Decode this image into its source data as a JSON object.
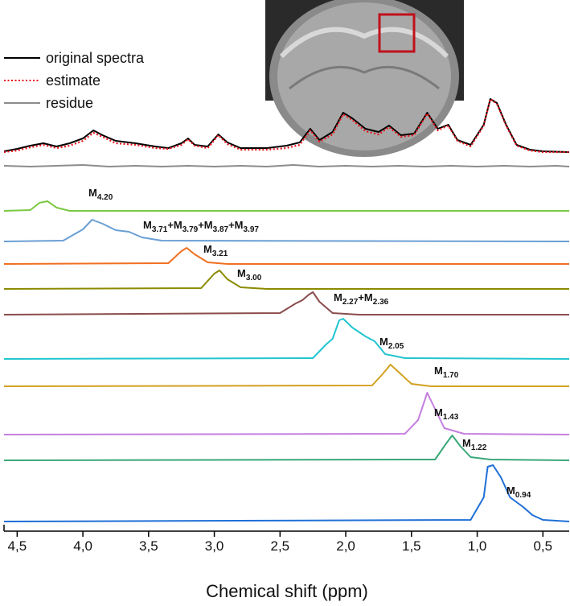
{
  "chart_data": {
    "type": "line",
    "xlabel": "Chemical shift (ppm)",
    "xlim": [
      4.6,
      0.3
    ],
    "xticks": [
      {
        "value": 4.5,
        "label": "4,5"
      },
      {
        "value": 4.0,
        "label": "4,0"
      },
      {
        "value": 3.5,
        "label": "3,5"
      },
      {
        "value": 3.0,
        "label": "3,0"
      },
      {
        "value": 2.5,
        "label": "2,5"
      },
      {
        "value": 2.0,
        "label": "2,0"
      },
      {
        "value": 1.5,
        "label": "1,5"
      },
      {
        "value": 1.0,
        "label": "1,0"
      },
      {
        "value": 0.5,
        "label": "0,5"
      }
    ],
    "series": [
      {
        "name": "original spectra",
        "color": "#000000",
        "dash": "solid",
        "x": [
          4.6,
          4.5,
          4.4,
          4.3,
          4.2,
          4.1,
          4.0,
          3.92,
          3.85,
          3.75,
          3.6,
          3.45,
          3.35,
          3.25,
          3.2,
          3.15,
          3.05,
          2.97,
          2.9,
          2.8,
          2.6,
          2.45,
          2.35,
          2.27,
          2.2,
          2.1,
          2.02,
          1.95,
          1.85,
          1.75,
          1.67,
          1.58,
          1.48,
          1.38,
          1.3,
          1.22,
          1.15,
          1.05,
          0.95,
          0.9,
          0.85,
          0.78,
          0.7,
          0.6,
          0.5,
          0.3
        ],
        "values": [
          0.2,
          0.5,
          0.9,
          1.2,
          0.8,
          1.2,
          1.8,
          2.8,
          2.2,
          1.5,
          1.2,
          0.8,
          0.6,
          1.2,
          1.8,
          1.0,
          0.8,
          2.3,
          1.3,
          0.6,
          0.6,
          0.9,
          1.3,
          3.0,
          1.6,
          2.6,
          5.0,
          4.3,
          3.0,
          2.6,
          3.4,
          2.2,
          2.4,
          5.0,
          3.0,
          3.5,
          1.6,
          1.0,
          3.5,
          6.7,
          6.2,
          3.5,
          1.0,
          0.4,
          0.2,
          0.1
        ]
      },
      {
        "name": "estimate",
        "color": "#e8141b",
        "dash": "dotted",
        "x": [
          4.6,
          4.5,
          4.4,
          4.3,
          4.2,
          4.1,
          4.0,
          3.92,
          3.85,
          3.75,
          3.6,
          3.45,
          3.35,
          3.25,
          3.2,
          3.15,
          3.05,
          2.97,
          2.9,
          2.8,
          2.6,
          2.45,
          2.35,
          2.27,
          2.2,
          2.1,
          2.02,
          1.95,
          1.85,
          1.75,
          1.67,
          1.58,
          1.48,
          1.38,
          1.3,
          1.22,
          1.15,
          1.05,
          0.95,
          0.9,
          0.85,
          0.78,
          0.7,
          0.6,
          0.5,
          0.3
        ],
        "values": [
          0.1,
          0.3,
          0.7,
          1.0,
          0.6,
          0.9,
          1.5,
          2.5,
          2.0,
          1.2,
          1.0,
          0.6,
          0.5,
          1.0,
          1.7,
          0.9,
          0.6,
          2.2,
          1.1,
          0.4,
          0.4,
          0.6,
          1.0,
          2.8,
          1.4,
          2.3,
          4.8,
          4.1,
          2.7,
          2.3,
          3.2,
          2.0,
          2.2,
          4.9,
          2.8,
          3.4,
          1.5,
          0.8,
          3.4,
          6.7,
          6.1,
          3.4,
          0.9,
          0.3,
          0.1,
          0.1
        ]
      },
      {
        "name": "residue",
        "color": "#8c8c8c",
        "dash": "solid",
        "x": [
          4.6,
          4.4,
          4.2,
          4.0,
          3.8,
          3.6,
          3.4,
          3.2,
          3.0,
          2.8,
          2.6,
          2.4,
          2.2,
          2.0,
          1.8,
          1.6,
          1.4,
          1.2,
          1.0,
          0.8,
          0.6,
          0.4,
          0.3
        ],
        "values": [
          0.1,
          0.0,
          0.1,
          0.2,
          0.0,
          0.1,
          0.0,
          0.1,
          0.0,
          0.1,
          0.0,
          0.2,
          0.0,
          0.1,
          0.0,
          0.1,
          0.0,
          0.1,
          0.0,
          0.1,
          0.0,
          0.1,
          0.0
        ]
      },
      {
        "label": [
          "M",
          "4.20"
        ],
        "color": "#7ac943",
        "x": [
          4.6,
          4.4,
          4.33,
          4.27,
          4.2,
          4.1,
          0.3
        ],
        "values": [
          0,
          0.1,
          1.0,
          1.2,
          0.4,
          0,
          0
        ]
      },
      {
        "label": [
          "M",
          "3.71",
          "+M",
          "3.79",
          "+M",
          "3.87",
          "+M",
          "3.97"
        ],
        "color": "#6a9fd4",
        "x": [
          4.6,
          4.15,
          4.0,
          3.93,
          3.85,
          3.75,
          3.65,
          3.55,
          3.4,
          0.3
        ],
        "values": [
          0,
          0.1,
          1.5,
          2.7,
          2.2,
          1.4,
          1.2,
          0.5,
          0.1,
          0
        ]
      },
      {
        "label": [
          "M",
          "3.21"
        ],
        "color": "#f07020",
        "x": [
          4.6,
          3.35,
          3.25,
          3.21,
          3.15,
          3.05,
          2.9,
          0.3
        ],
        "values": [
          0,
          0.1,
          1.6,
          2.0,
          1.2,
          0.2,
          0,
          0
        ]
      },
      {
        "label": [
          "M",
          "3.00"
        ],
        "color": "#8b8b00",
        "x": [
          4.6,
          3.1,
          3.0,
          2.96,
          2.9,
          2.8,
          2.6,
          0.3
        ],
        "values": [
          0,
          0.1,
          1.9,
          2.3,
          1.2,
          0.2,
          0,
          0
        ]
      },
      {
        "label": [
          "M",
          "2.27",
          "+M",
          "2.36"
        ],
        "color": "#8b4c4c",
        "x": [
          4.6,
          2.5,
          2.38,
          2.33,
          2.28,
          2.25,
          2.2,
          2.1,
          1.9,
          0.3
        ],
        "values": [
          0,
          0.2,
          1.4,
          1.8,
          2.5,
          2.8,
          1.6,
          0.2,
          0,
          0
        ]
      },
      {
        "label": [
          "M",
          "2.05"
        ],
        "color": "#22c5d0",
        "x": [
          4.6,
          2.25,
          2.15,
          2.1,
          2.05,
          2.02,
          1.95,
          1.85,
          1.78,
          1.7,
          1.55,
          0.3
        ],
        "values": [
          0,
          0.1,
          1.8,
          2.5,
          4.8,
          5.0,
          3.9,
          2.8,
          2.2,
          0.6,
          0.1,
          0
        ]
      },
      {
        "label": [
          "M",
          "1.70"
        ],
        "color": "#d4a020",
        "x": [
          4.6,
          1.8,
          1.72,
          1.66,
          1.6,
          1.5,
          1.35,
          0.3
        ],
        "values": [
          0,
          0.1,
          1.5,
          2.7,
          1.8,
          0.3,
          0,
          0
        ]
      },
      {
        "label": [
          "M",
          "1.43"
        ],
        "color": "#c57ee0",
        "x": [
          4.6,
          1.55,
          1.45,
          1.38,
          1.33,
          1.25,
          1.1,
          0.3
        ],
        "values": [
          0,
          0.1,
          1.8,
          5.2,
          3.5,
          0.8,
          0.1,
          0
        ]
      },
      {
        "label": [
          "M",
          "1.22"
        ],
        "color": "#3aa878",
        "x": [
          4.6,
          1.32,
          1.24,
          1.19,
          1.13,
          1.05,
          0.9,
          0.3
        ],
        "values": [
          0,
          0.1,
          2.0,
          3.1,
          1.8,
          0.4,
          0.1,
          0
        ]
      },
      {
        "label": [
          "M",
          "0.94"
        ],
        "color": "#1f6fd6",
        "x": [
          4.6,
          1.05,
          0.95,
          0.92,
          0.88,
          0.82,
          0.75,
          0.65,
          0.58,
          0.5,
          0.3
        ],
        "values": [
          0,
          0.2,
          3.0,
          6.8,
          7.0,
          5.5,
          3.0,
          1.8,
          0.8,
          0.2,
          0
        ]
      }
    ]
  }
}
